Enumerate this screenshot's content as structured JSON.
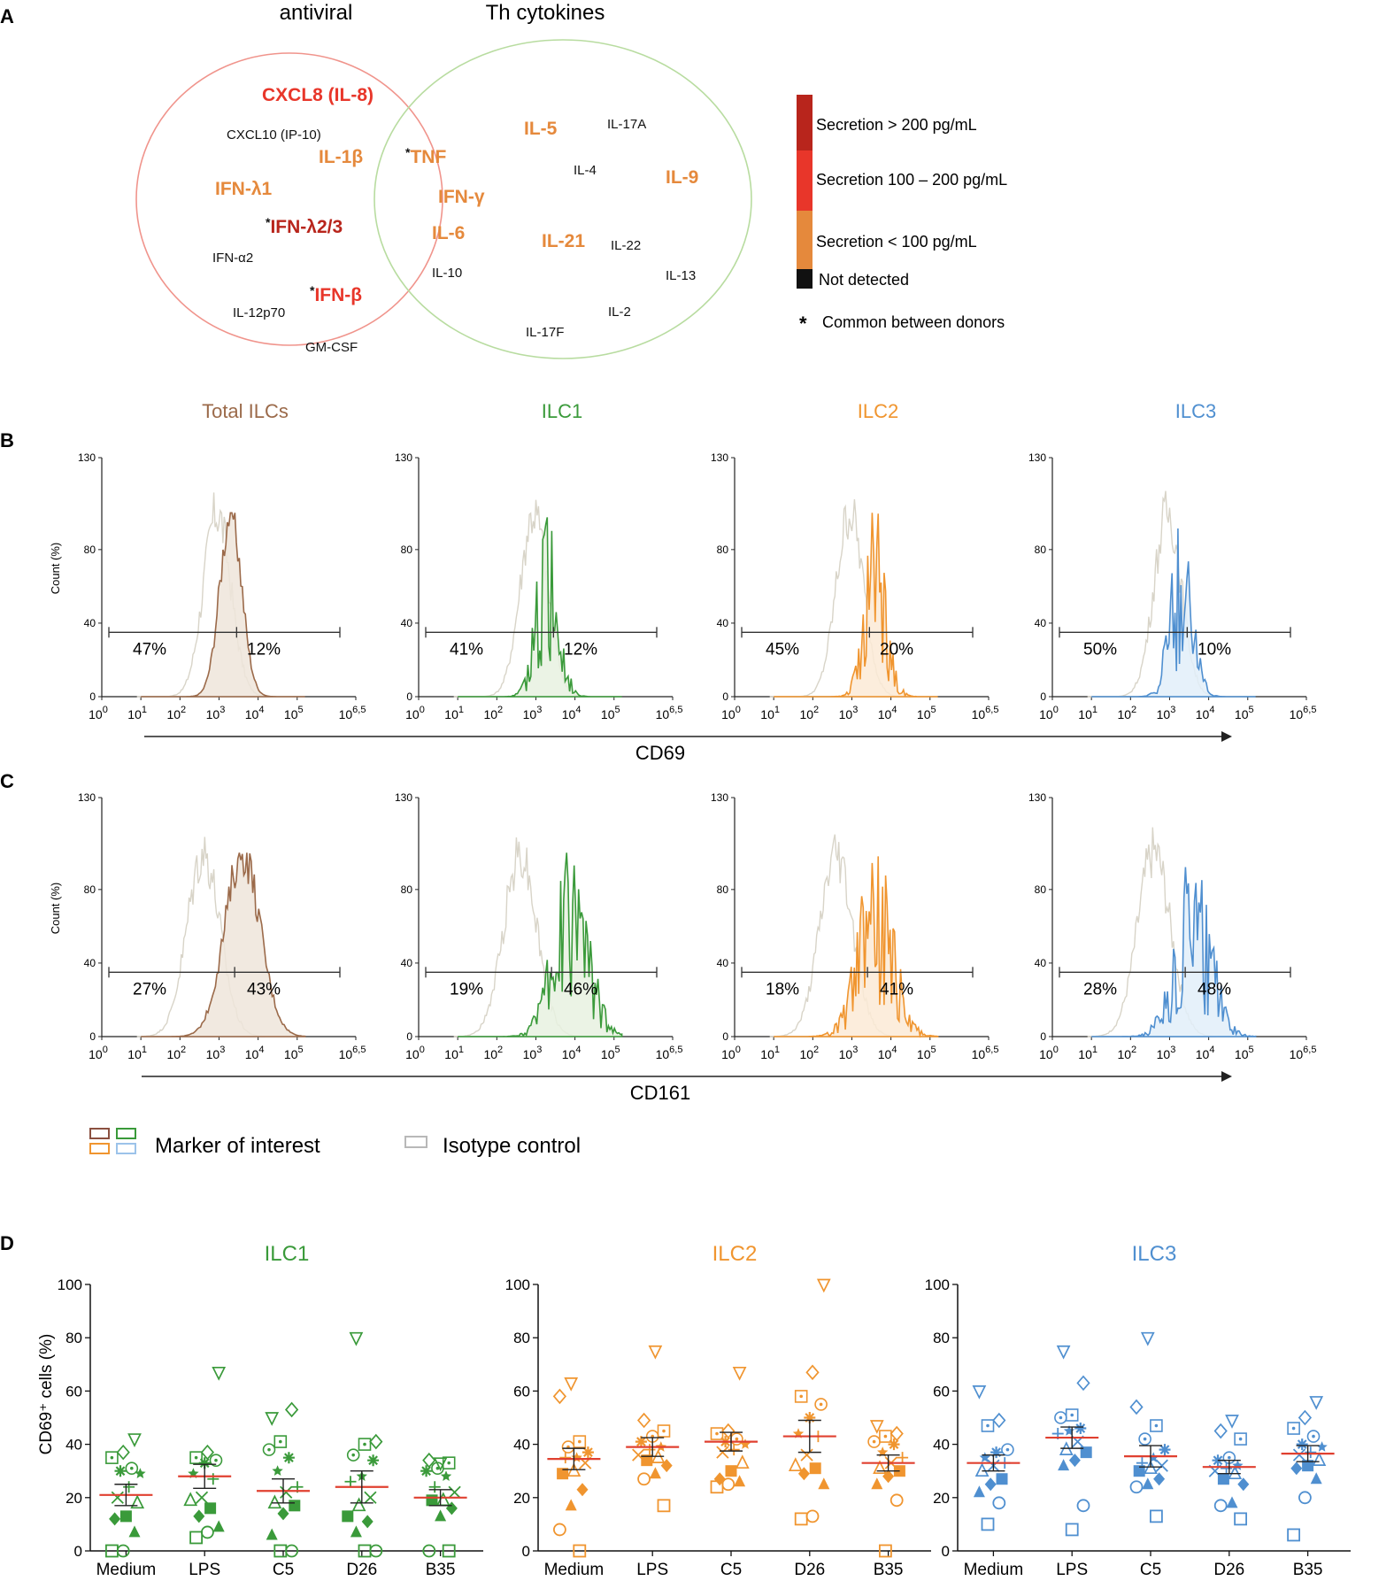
{
  "colors": {
    "total": "#9b6a4a",
    "ilc1": "#3a9a3a",
    "ilc2": "#f0952f",
    "ilc3": "#4f8fd0",
    "isotype": "#d8d4c8",
    "mean_line": "#e04030",
    "venn_antiviral": "#f0948c",
    "venn_th": "#b8dca0",
    "high": "#b8251c",
    "mid": "#e8362a",
    "low": "#e5893c",
    "nd": "#111111"
  },
  "panel_a": {
    "letter": "A",
    "antiviral_title": "antiviral",
    "th_title": "Th cytokines",
    "cytokines": [
      {
        "text": "CXCL8 (IL-8)",
        "level": "mid",
        "star": false
      },
      {
        "text": "CXCL10 (IP-10)",
        "level": "nd",
        "star": false
      },
      {
        "text": "IL-1β",
        "level": "low",
        "star": false
      },
      {
        "text": "IFN-λ1",
        "level": "low",
        "star": false
      },
      {
        "text": "IFN-λ2/3",
        "level": "high",
        "star": true
      },
      {
        "text": "IFN-α2",
        "level": "nd",
        "star": false
      },
      {
        "text": "IFN-β",
        "level": "mid",
        "star": true
      },
      {
        "text": "IL-12p70",
        "level": "nd",
        "star": false
      },
      {
        "text": "GM-CSF",
        "level": "nd",
        "star": false
      },
      {
        "text": "TNF",
        "level": "low",
        "star": true
      },
      {
        "text": "IFN-γ",
        "level": "low",
        "star": false
      },
      {
        "text": "IL-6",
        "level": "low",
        "star": false
      },
      {
        "text": "IL-10",
        "level": "nd",
        "star": false
      },
      {
        "text": "IL-5",
        "level": "low",
        "star": false
      },
      {
        "text": "IL-17A",
        "level": "nd",
        "star": false
      },
      {
        "text": "IL-4",
        "level": "nd",
        "star": false
      },
      {
        "text": "IL-9",
        "level": "low",
        "star": false
      },
      {
        "text": "IL-21",
        "level": "low",
        "star": false
      },
      {
        "text": "IL-22",
        "level": "nd",
        "star": false
      },
      {
        "text": "IL-13",
        "level": "nd",
        "star": false
      },
      {
        "text": "IL-2",
        "level": "nd",
        "star": false
      },
      {
        "text": "IL-17F",
        "level": "nd",
        "star": false
      }
    ],
    "legend": {
      "high": "Secretion > 200 pg/mL",
      "mid": "Secretion 100 – 200 pg/mL",
      "low": "Secretion < 100 pg/mL",
      "nd": "Not detected",
      "star_symbol": "*",
      "star_label": "Common between donors"
    }
  },
  "panel_bc": {
    "letter_b": "B",
    "letter_c": "C",
    "titles": [
      "Total ILCs",
      "ILC1",
      "ILC2",
      "ILC3"
    ],
    "y_label": "Count (%)",
    "y_ticks": [
      "130",
      "80",
      "40",
      "0"
    ],
    "x_ticks": [
      "10",
      "10",
      "10",
      "10",
      "10",
      "10",
      "10"
    ],
    "x_exps": [
      "0",
      "1",
      "2",
      "3",
      "4",
      "5",
      "6,5"
    ],
    "cd69_label": "CD69",
    "cd161_label": "CD161",
    "cd69_pct": [
      [
        "47%",
        "12%"
      ],
      [
        "41%",
        "12%"
      ],
      [
        "45%",
        "20%"
      ],
      [
        "50%",
        "10%"
      ]
    ],
    "cd161_pct": [
      [
        "27%",
        "43%"
      ],
      [
        "19%",
        "46%"
      ],
      [
        "18%",
        "41%"
      ],
      [
        "28%",
        "48%"
      ]
    ],
    "legend_marker": "Marker of interest",
    "legend_isotype": "Isotype control"
  },
  "panel_d": {
    "letter": "D",
    "y_label": "CD69⁺ cells (%)",
    "y_ticks": [
      "0",
      "20",
      "40",
      "60",
      "80",
      "100"
    ]
  },
  "chart_data": [
    {
      "type": "scatter",
      "title": "ILC1",
      "ylabel": "CD69+ cells (%)",
      "ylim": [
        0,
        100
      ],
      "categories": [
        "Medium",
        "LPS",
        "C5",
        "D26",
        "B35"
      ],
      "points": [
        [
          0,
          0,
          7,
          12,
          13,
          18,
          20,
          24,
          29,
          30,
          31,
          35,
          37,
          42
        ],
        [
          5,
          7,
          9,
          13,
          16,
          19,
          20,
          27,
          29,
          33,
          34,
          35,
          37,
          67
        ],
        [
          0,
          0,
          6,
          14,
          17,
          18,
          22,
          24,
          30,
          35,
          38,
          41,
          53,
          50
        ],
        [
          0,
          0,
          7,
          11,
          13,
          17,
          20,
          26,
          28,
          34,
          36,
          40,
          41,
          80
        ],
        [
          0,
          0,
          13,
          16,
          19,
          19,
          22,
          24,
          28,
          30,
          31,
          33,
          34,
          33
        ]
      ],
      "mean": [
        21,
        28,
        22.5,
        24,
        20
      ],
      "sem": [
        4,
        4.5,
        4.5,
        6,
        3
      ]
    },
    {
      "type": "scatter",
      "title": "ILC2",
      "ylabel": "CD69+ cells (%)",
      "ylim": [
        0,
        100
      ],
      "categories": [
        "Medium",
        "LPS",
        "C5",
        "D26",
        "B35"
      ],
      "points": [
        [
          0,
          8,
          17,
          23,
          29,
          30,
          33,
          35,
          35,
          37,
          39,
          41,
          58,
          63
        ],
        [
          17,
          27,
          29,
          32,
          34,
          35,
          36,
          38,
          39,
          41,
          43,
          45,
          49,
          75
        ],
        [
          24,
          25,
          26,
          27,
          30,
          33,
          37,
          38,
          40,
          41,
          42,
          44,
          45,
          67
        ],
        [
          12,
          13,
          25,
          29,
          31,
          32,
          36,
          43,
          44,
          50,
          55,
          58,
          67,
          100
        ],
        [
          0,
          19,
          25,
          28,
          30,
          31,
          33,
          35,
          37,
          40,
          41,
          43,
          44,
          47
        ]
      ],
      "mean": [
        34.5,
        39,
        41,
        43,
        33
      ],
      "sem": [
        4,
        3.5,
        3.5,
        6,
        3
      ]
    },
    {
      "type": "scatter",
      "title": "ILC3",
      "ylabel": "CD69+ cells (%)",
      "ylim": [
        0,
        100
      ],
      "categories": [
        "Medium",
        "LPS",
        "C5",
        "D26",
        "B35"
      ],
      "points": [
        [
          10,
          18,
          22,
          25,
          27,
          30,
          32,
          33,
          35,
          37,
          38,
          47,
          49,
          60
        ],
        [
          8,
          17,
          32,
          34,
          37,
          38,
          41,
          44,
          45,
          46,
          50,
          51,
          63,
          75
        ],
        [
          13,
          24,
          25,
          27,
          30,
          31,
          32,
          33,
          35,
          38,
          42,
          47,
          54,
          80
        ],
        [
          12,
          17,
          18,
          25,
          27,
          29,
          30,
          31,
          32,
          34,
          35,
          42,
          45,
          49
        ],
        [
          6,
          20,
          27,
          31,
          32,
          34,
          36,
          37,
          39,
          40,
          43,
          46,
          50,
          56
        ]
      ],
      "mean": [
        33,
        42.5,
        35.5,
        31.5,
        36.5
      ],
      "sem": [
        3,
        4,
        4,
        2.5,
        3
      ]
    }
  ]
}
